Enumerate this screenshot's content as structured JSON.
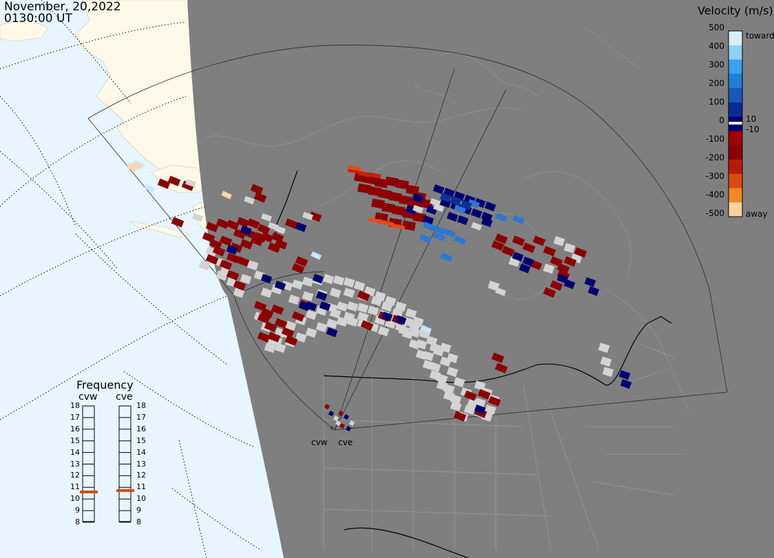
{
  "header": {
    "date": "November, 20,2022",
    "time": "0130:00 UT"
  },
  "velocity_scale": {
    "title": "Velocity (m/s)",
    "ticks": [
      "500",
      "400",
      "300",
      "200",
      "100",
      "0",
      "-100",
      "-200",
      "-300",
      "-400",
      "-500"
    ],
    "side_labels": {
      "toward": "toward",
      "plus10": "10",
      "minus10": "-10",
      "away": "away"
    },
    "colors": [
      "#d8eefb",
      "#8fd0f6",
      "#3aa3ec",
      "#1f80d8",
      "#1858b8",
      "#0b2a94",
      "#000070",
      "#a00000",
      "#8c0000",
      "#b81a0a",
      "#dd4a10",
      "#f28a20",
      "#fbd0a0"
    ]
  },
  "frequency_panel": {
    "title": "Frequency",
    "radars": [
      {
        "name": "cvw",
        "frequency_mhz": 10.9
      },
      {
        "name": "cve",
        "frequency_mhz": 11.0
      }
    ],
    "scale": [
      "18",
      "17",
      "16",
      "15",
      "14",
      "13",
      "12",
      "11",
      "10",
      "9",
      "8"
    ],
    "marker_color": "#d84a14"
  },
  "map": {
    "ocean_color": "#e7f5ff",
    "land_day_color": "#fcf9e6",
    "night_color": "#7f7f7f",
    "radar_sites": [
      "cvw",
      "cve"
    ]
  },
  "data_colors": {
    "ground_scatter": "#d3d3d3",
    "away_strong": "#8c0000",
    "away_mid": "#c81e0a",
    "away_orange": "#e44c14",
    "toward_strong": "#000070",
    "toward_mid": "#0a3296",
    "toward_light": "#2c78d2",
    "pale_blue": "#c8e6ff",
    "pale_orange": "#fbd5b0"
  }
}
